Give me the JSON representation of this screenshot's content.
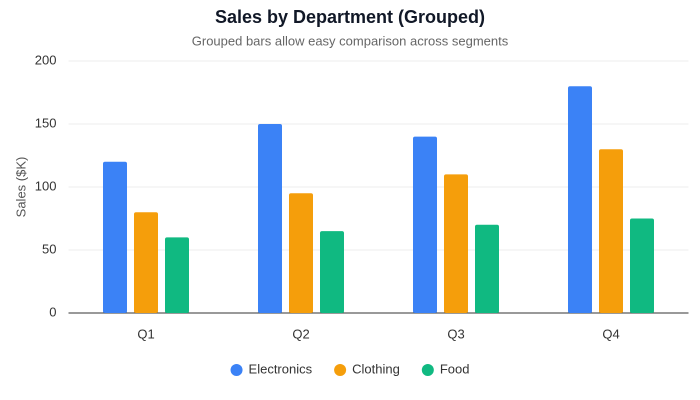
{
  "chart_data": {
    "type": "bar",
    "title": "Sales by Department (Grouped)",
    "subtitle": "Grouped bars allow easy comparison across segments",
    "y_label": "Sales ($K)",
    "categories": [
      "Q1",
      "Q2",
      "Q3",
      "Q4"
    ],
    "series": [
      {
        "name": "Electronics",
        "color": "#3b82f6",
        "values": [
          120,
          150,
          140,
          180
        ]
      },
      {
        "name": "Clothing",
        "color": "#f59e0b",
        "values": [
          80,
          95,
          110,
          130
        ]
      },
      {
        "name": "Food",
        "color": "#10b981",
        "values": [
          60,
          65,
          70,
          75
        ]
      }
    ],
    "ylim": [
      0,
      200
    ],
    "yticks": [
      0,
      50,
      100,
      150,
      200
    ],
    "grid": true,
    "legend": "bottom"
  }
}
